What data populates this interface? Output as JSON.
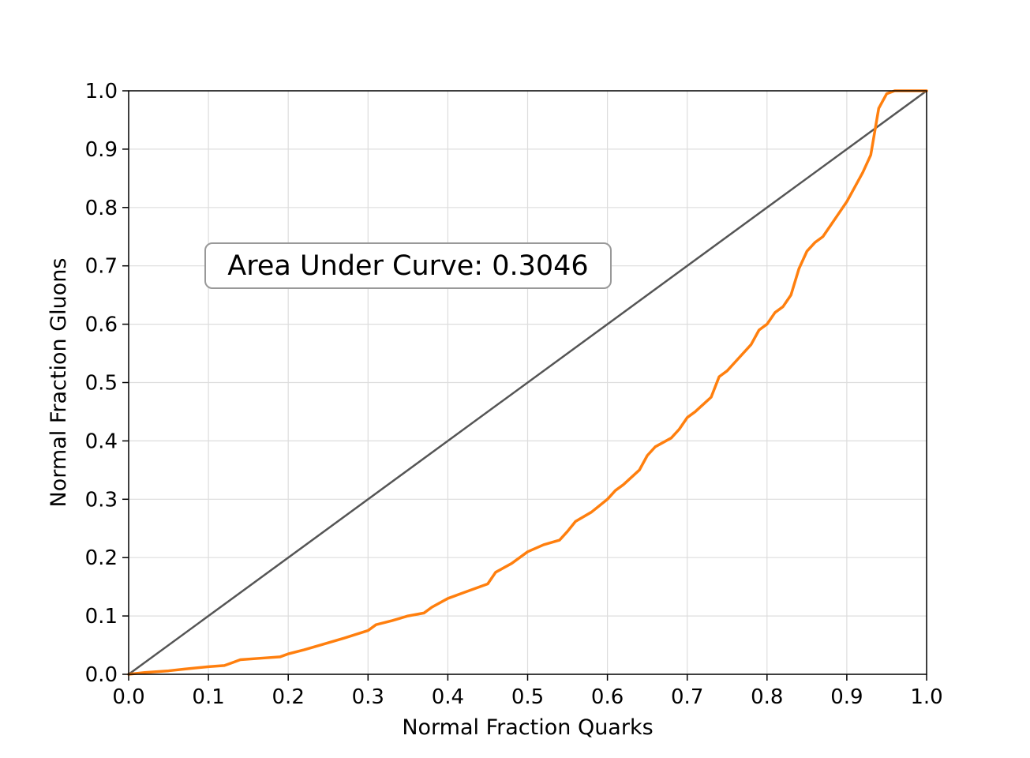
{
  "chart_data": {
    "type": "line",
    "xlabel": "Normal Fraction Quarks",
    "ylabel": "Normal Fraction Gluons",
    "xlim": [
      0.0,
      1.0
    ],
    "ylim": [
      0.0,
      1.0
    ],
    "x_ticks": [
      "0.0",
      "0.1",
      "0.2",
      "0.3",
      "0.4",
      "0.5",
      "0.6",
      "0.7",
      "0.8",
      "0.9",
      "1.0"
    ],
    "y_ticks": [
      "0.0",
      "0.1",
      "0.2",
      "0.3",
      "0.4",
      "0.5",
      "0.6",
      "0.7",
      "0.8",
      "0.9",
      "1.0"
    ],
    "grid": true,
    "annotation": "Area Under Curve: 0.3046",
    "series": [
      {
        "color": "#555555",
        "x": [
          0.0,
          1.0
        ],
        "y": [
          0.0,
          1.0
        ]
      },
      {
        "color": "#ff7f0e",
        "x": [
          0.0,
          0.02,
          0.05,
          0.07,
          0.1,
          0.12,
          0.13,
          0.14,
          0.17,
          0.19,
          0.2,
          0.22,
          0.24,
          0.27,
          0.3,
          0.31,
          0.33,
          0.35,
          0.37,
          0.38,
          0.4,
          0.42,
          0.45,
          0.46,
          0.48,
          0.49,
          0.5,
          0.52,
          0.54,
          0.55,
          0.56,
          0.58,
          0.6,
          0.61,
          0.62,
          0.64,
          0.65,
          0.66,
          0.68,
          0.69,
          0.7,
          0.71,
          0.73,
          0.74,
          0.75,
          0.76,
          0.78,
          0.79,
          0.8,
          0.81,
          0.82,
          0.83,
          0.84,
          0.85,
          0.86,
          0.87,
          0.88,
          0.89,
          0.9,
          0.91,
          0.92,
          0.93,
          0.94,
          0.95,
          0.96,
          0.97,
          0.98,
          0.99,
          1.0
        ],
        "y": [
          0.0,
          0.003,
          0.006,
          0.009,
          0.013,
          0.015,
          0.02,
          0.025,
          0.028,
          0.03,
          0.035,
          0.042,
          0.05,
          0.062,
          0.075,
          0.085,
          0.092,
          0.1,
          0.105,
          0.115,
          0.13,
          0.14,
          0.155,
          0.175,
          0.19,
          0.2,
          0.21,
          0.222,
          0.23,
          0.245,
          0.262,
          0.278,
          0.3,
          0.315,
          0.325,
          0.35,
          0.375,
          0.39,
          0.405,
          0.42,
          0.44,
          0.45,
          0.475,
          0.51,
          0.52,
          0.535,
          0.565,
          0.59,
          0.6,
          0.62,
          0.63,
          0.65,
          0.695,
          0.725,
          0.74,
          0.75,
          0.77,
          0.79,
          0.81,
          0.835,
          0.86,
          0.89,
          0.97,
          0.995,
          1.0,
          1.0,
          1.0,
          1.0,
          1.0
        ]
      }
    ]
  }
}
